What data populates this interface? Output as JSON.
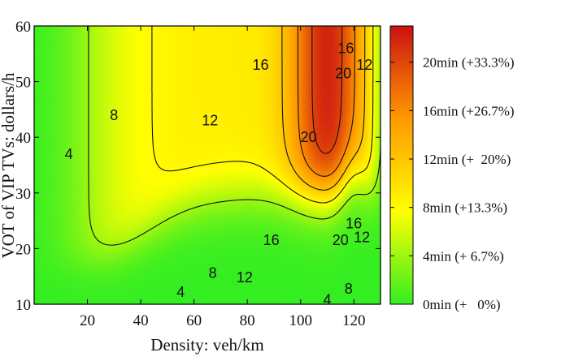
{
  "chart_data": {
    "type": "heatmap",
    "title": "",
    "xlabel": "Density: veh/km",
    "ylabel": "VOT of VIP TVs: dollars/h",
    "xlim": [
      0,
      130
    ],
    "ylim": [
      10,
      60
    ],
    "x_ticks": [
      "20",
      "40",
      "60",
      "80",
      "100",
      "120"
    ],
    "y_ticks": [
      "10",
      "20",
      "30",
      "40",
      "50",
      "60"
    ],
    "color_range": [
      0,
      23
    ],
    "colormap": [
      "#33ee22",
      "#ffff00",
      "#ff9900",
      "#cc1111"
    ],
    "colorbar_labels": [
      "0min (+   0%)",
      "4min (+ 6.7%)",
      "8min (+13.3%)",
      "12min (+  20%)",
      "16min (+26.7%)",
      "20min (+33.3%)"
    ],
    "contour_levels": [
      4,
      8,
      12,
      16,
      20
    ],
    "contour_labels": [
      {
        "text": "4",
        "x": 13,
        "y": 37
      },
      {
        "text": "4",
        "x": 55,
        "y": 12.2
      },
      {
        "text": "4",
        "x": 110,
        "y": 10.8
      },
      {
        "text": "8",
        "x": 30,
        "y": 44
      },
      {
        "text": "8",
        "x": 67,
        "y": 15.6
      },
      {
        "text": "8",
        "x": 118,
        "y": 12.8
      },
      {
        "text": "12",
        "x": 66,
        "y": 43
      },
      {
        "text": "12",
        "x": 79,
        "y": 14.8
      },
      {
        "text": "12",
        "x": 124,
        "y": 53
      },
      {
        "text": "12",
        "x": 123,
        "y": 22
      },
      {
        "text": "16",
        "x": 85,
        "y": 53
      },
      {
        "text": "16",
        "x": 89,
        "y": 21.5
      },
      {
        "text": "16",
        "x": 117,
        "y": 56
      },
      {
        "text": "16",
        "x": 120,
        "y": 24.5
      },
      {
        "text": "20",
        "x": 103,
        "y": 40
      },
      {
        "text": "20",
        "x": 116,
        "y": 51.5
      },
      {
        "text": "20",
        "x": 115,
        "y": 21.5
      }
    ]
  }
}
